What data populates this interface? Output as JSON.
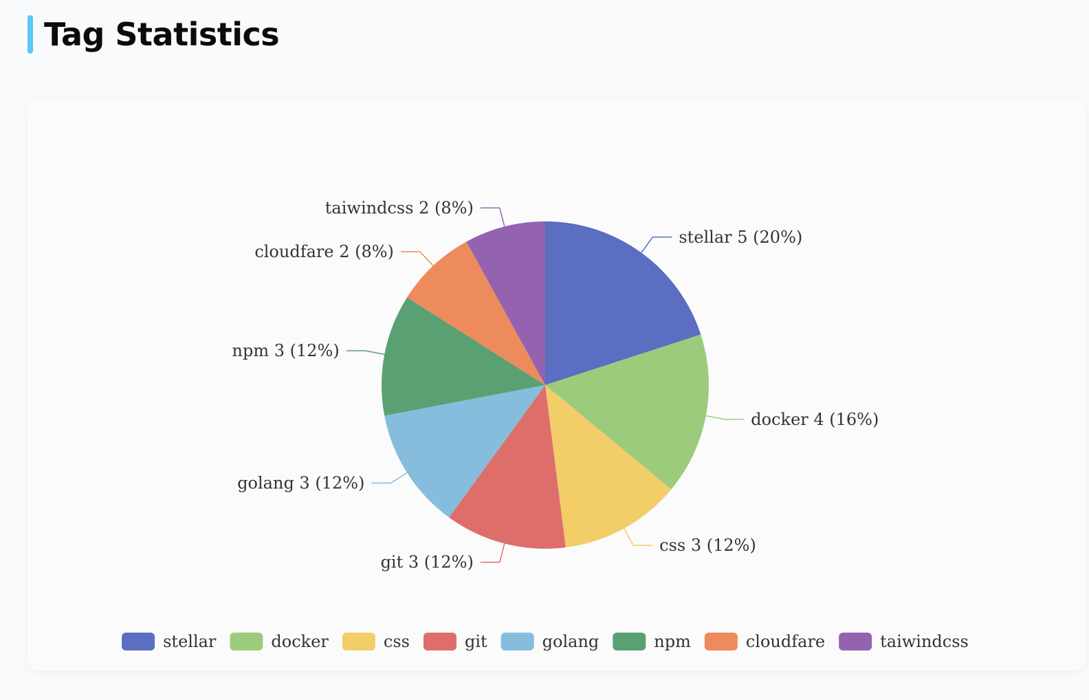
{
  "page": {
    "title": "Tag Statistics",
    "accent_color": "#5ac8f8"
  },
  "chart_data": {
    "type": "pie",
    "title": "",
    "categories": [
      "stellar",
      "docker",
      "css",
      "git",
      "golang",
      "npm",
      "cloudfare",
      "taiwindcss"
    ],
    "values": [
      5,
      4,
      3,
      3,
      3,
      3,
      2,
      2
    ],
    "labels": [
      "stellar 5 (20%)",
      "docker 4 (16%)",
      "css 3 (12%)",
      "git 3 (12%)",
      "golang 3 (12%)",
      "npm 3 (12%)",
      "cloudfare 2 (8%)",
      "taiwindcss 2 (8%)"
    ],
    "colors": [
      "#5c6ec1",
      "#9dcb7c",
      "#f2cd68",
      "#de6e6a",
      "#87bddc",
      "#5ba073",
      "#ed8b5c",
      "#9463b0"
    ],
    "legend": "bottom-center"
  }
}
